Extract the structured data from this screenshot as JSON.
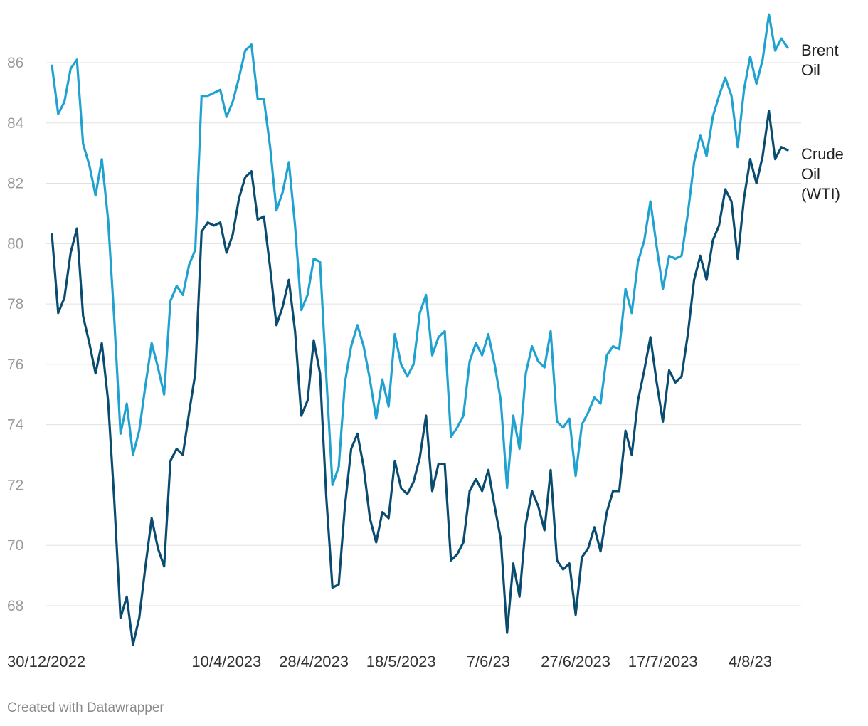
{
  "chart_data": {
    "type": "line",
    "title": "",
    "xlabel": "",
    "ylabel": "",
    "ylim": [
      66.5,
      87.5
    ],
    "yticks": [
      68,
      70,
      72,
      74,
      76,
      78,
      80,
      82,
      84,
      86
    ],
    "grid": "horizontal",
    "legend": "direct labels at right end of lines",
    "x_tick_labels": [
      {
        "index": 0,
        "label": "30/12/2022"
      },
      {
        "index": 28,
        "label": "10/4/2023"
      },
      {
        "index": 42,
        "label": "28/4/2023"
      },
      {
        "index": 56,
        "label": "18/5/2023"
      },
      {
        "index": 70,
        "label": "7/6/23"
      },
      {
        "index": 84,
        "label": "27/6/2023"
      },
      {
        "index": 98,
        "label": "17/7/2023"
      },
      {
        "index": 112,
        "label": "4/8/23"
      }
    ],
    "series": [
      {
        "name": "Brent Oil",
        "label_lines": [
          "Brent",
          "Oil"
        ],
        "color": "#1fa2d0",
        "values": [
          85.9,
          84.3,
          84.7,
          85.8,
          86.1,
          83.3,
          82.6,
          81.6,
          82.8,
          80.8,
          77.5,
          73.7,
          74.7,
          73.0,
          73.8,
          75.3,
          76.7,
          75.9,
          75.0,
          78.1,
          78.6,
          78.3,
          79.3,
          79.8,
          84.9,
          84.9,
          85.0,
          85.1,
          84.2,
          84.7,
          85.5,
          86.4,
          86.6,
          84.8,
          84.8,
          83.2,
          81.1,
          81.7,
          82.7,
          80.6,
          77.8,
          78.3,
          79.5,
          79.4,
          75.6,
          72.0,
          72.6,
          75.4,
          76.6,
          77.3,
          76.6,
          75.5,
          74.2,
          75.5,
          74.6,
          77.0,
          76.0,
          75.6,
          76.0,
          77.7,
          78.3,
          76.3,
          76.9,
          77.1,
          73.6,
          73.9,
          74.3,
          76.1,
          76.7,
          76.3,
          77.0,
          76.0,
          74.8,
          71.9,
          74.3,
          73.2,
          75.7,
          76.6,
          76.1,
          75.9,
          77.1,
          74.1,
          73.9,
          74.2,
          72.3,
          74.0,
          74.4,
          74.9,
          74.7,
          76.3,
          76.6,
          76.5,
          78.5,
          77.7,
          79.4,
          80.1,
          81.4,
          79.9,
          78.5,
          79.6,
          79.5,
          79.6,
          81.0,
          82.7,
          83.6,
          82.9,
          84.2,
          84.9,
          85.5,
          84.9,
          83.2,
          85.1,
          86.2,
          85.3,
          86.1,
          87.6,
          86.4,
          86.8,
          86.5
        ]
      },
      {
        "name": "Crude Oil (WTI)",
        "label_lines": [
          "Crude",
          "Oil",
          "(WTI)"
        ],
        "color": "#0a4c70",
        "values": [
          80.3,
          77.7,
          78.2,
          79.7,
          80.5,
          77.6,
          76.7,
          75.7,
          76.7,
          74.8,
          71.5,
          67.6,
          68.3,
          66.7,
          67.6,
          69.3,
          70.9,
          69.9,
          69.3,
          72.8,
          73.2,
          73.0,
          74.4,
          75.7,
          80.4,
          80.7,
          80.6,
          80.7,
          79.7,
          80.3,
          81.5,
          82.2,
          82.4,
          80.8,
          80.9,
          79.2,
          77.3,
          77.9,
          78.8,
          77.1,
          74.3,
          74.8,
          76.8,
          75.7,
          71.6,
          68.6,
          68.7,
          71.3,
          73.2,
          73.7,
          72.6,
          70.9,
          70.1,
          71.1,
          70.9,
          72.8,
          71.9,
          71.7,
          72.1,
          72.9,
          74.3,
          71.8,
          72.7,
          72.7,
          69.5,
          69.7,
          70.1,
          71.8,
          72.2,
          71.8,
          72.5,
          71.3,
          70.2,
          67.1,
          69.4,
          68.3,
          70.7,
          71.8,
          71.3,
          70.5,
          72.5,
          69.5,
          69.2,
          69.4,
          67.7,
          69.6,
          69.9,
          70.6,
          69.8,
          71.1,
          71.8,
          71.8,
          73.8,
          73.0,
          74.8,
          75.8,
          76.9,
          75.4,
          74.1,
          75.8,
          75.4,
          75.6,
          77.0,
          78.8,
          79.6,
          78.8,
          80.1,
          80.6,
          81.8,
          81.4,
          79.5,
          81.5,
          82.8,
          82.0,
          82.9,
          84.4,
          82.8,
          83.2,
          83.1
        ]
      }
    ]
  },
  "footer": {
    "credit": "Created with Datawrapper"
  }
}
